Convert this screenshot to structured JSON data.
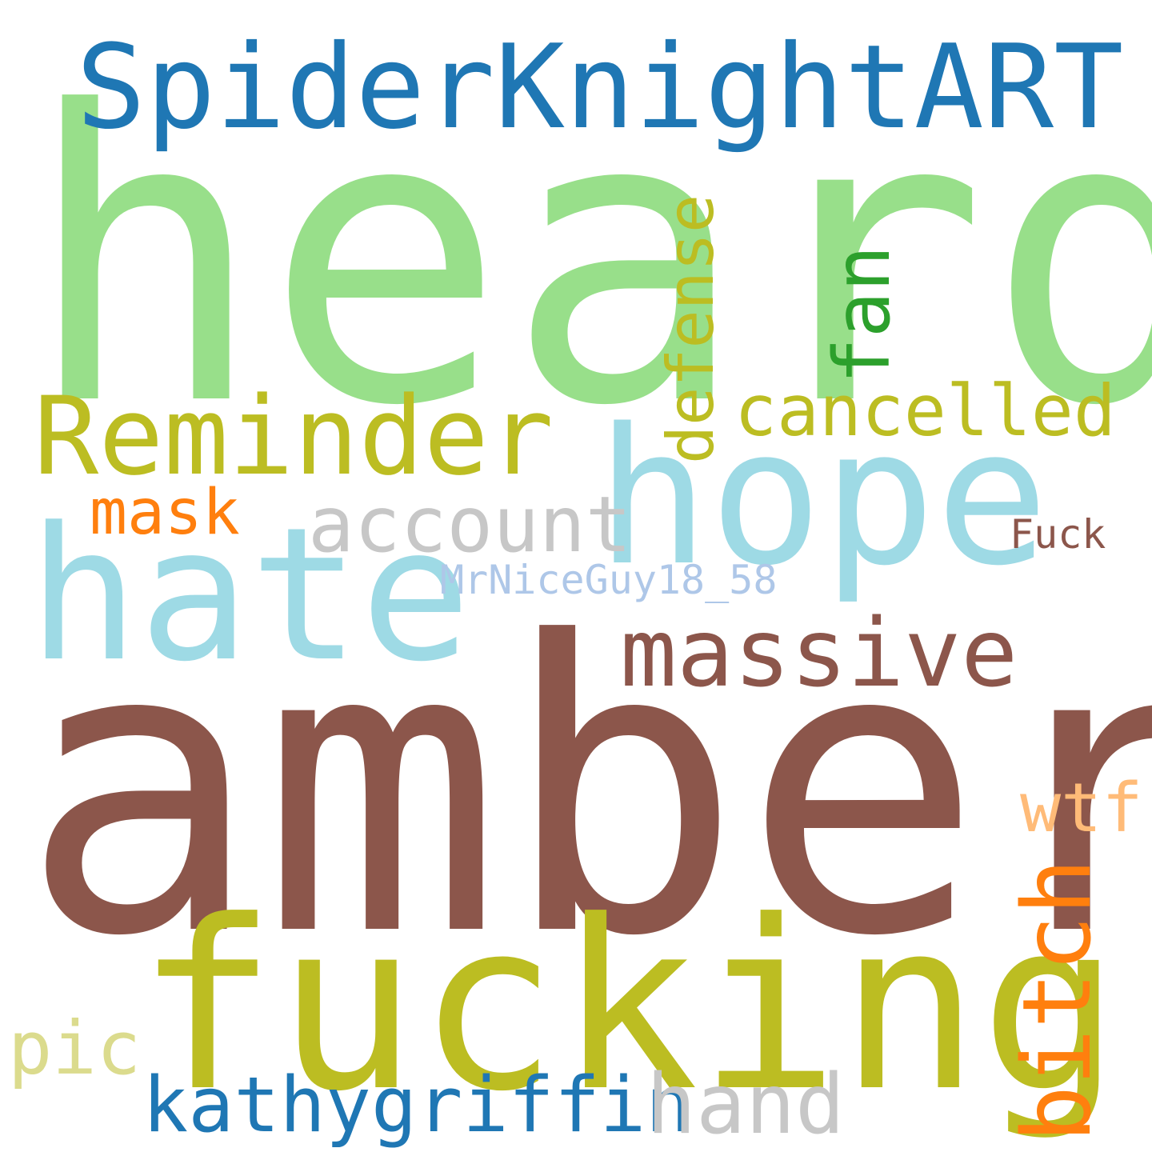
{
  "words": [
    {
      "id": "heard",
      "text": "heard",
      "color": "#98df8a",
      "orientation": "horizontal"
    },
    {
      "id": "amber",
      "text": "amber",
      "color": "#8c564b",
      "orientation": "horizontal"
    },
    {
      "id": "fucking",
      "text": "fucking",
      "color": "#bcbd22",
      "orientation": "horizontal"
    },
    {
      "id": "hope",
      "text": "hope",
      "color": "#9edae5",
      "orientation": "horizontal"
    },
    {
      "id": "hate",
      "text": "hate",
      "color": "#9edae5",
      "orientation": "horizontal"
    },
    {
      "id": "SpiderKnightART",
      "text": "SpiderKnightART",
      "color": "#1f77b4",
      "orientation": "horizontal"
    },
    {
      "id": "Reminder",
      "text": "Reminder",
      "color": "#bcbd22",
      "orientation": "horizontal"
    },
    {
      "id": "massive",
      "text": "massive",
      "color": "#8c564b",
      "orientation": "horizontal"
    },
    {
      "id": "cancelled",
      "text": "cancelled",
      "color": "#bcbd22",
      "orientation": "horizontal"
    },
    {
      "id": "account",
      "text": "account",
      "color": "#c7c7c7",
      "orientation": "horizontal"
    },
    {
      "id": "mask",
      "text": "mask",
      "color": "#ff7f0e",
      "orientation": "horizontal"
    },
    {
      "id": "defense",
      "text": "defense",
      "color": "#bcbd22",
      "orientation": "vertical"
    },
    {
      "id": "fan",
      "text": "fan",
      "color": "#2ca02c",
      "orientation": "vertical"
    },
    {
      "id": "bitch",
      "text": "bitch",
      "color": "#ff7f0e",
      "orientation": "vertical"
    },
    {
      "id": "wtf",
      "text": "wtf",
      "color": "#ffbb78",
      "orientation": "horizontal"
    },
    {
      "id": "Fuck",
      "text": "Fuck",
      "color": "#8c564b",
      "orientation": "horizontal"
    },
    {
      "id": "MrNiceGuy18_58",
      "text": "MrNiceGuy18_58",
      "color": "#aec7e8",
      "orientation": "horizontal"
    },
    {
      "id": "kathygriffin",
      "text": "kathygriffin",
      "color": "#1f77b4",
      "orientation": "horizontal"
    },
    {
      "id": "hand",
      "text": "hand",
      "color": "#c7c7c7",
      "orientation": "horizontal"
    },
    {
      "id": "pic",
      "text": "pic",
      "color": "#dbdb8d",
      "orientation": "horizontal"
    }
  ]
}
